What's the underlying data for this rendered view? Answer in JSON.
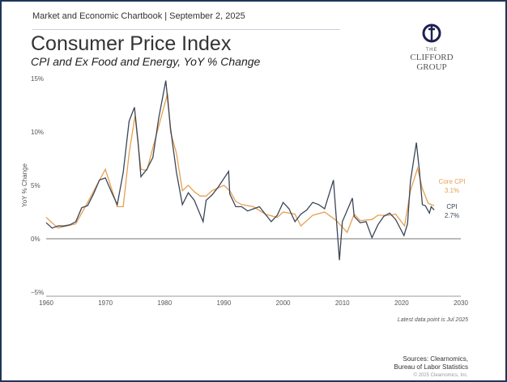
{
  "header": {
    "chartbook": "Market and Economic Chartbook | September 2, 2025"
  },
  "title": "Consumer Price Index",
  "subtitle": "CPI and Ex Food and Energy, YoY % Change",
  "logo": {
    "the": "THE",
    "name": "CLIFFORD GROUP"
  },
  "note": "Latest data point is Jul 2025",
  "sources": [
    "Sources: Clearnomics,",
    "Bureau of Labor Statistics"
  ],
  "copyright": "© 2025 Clearnomics, Inc.",
  "colors": {
    "cpi": "#3b4658",
    "core": "#e6a050",
    "frame": "#1f3557"
  },
  "chart_data": {
    "type": "line",
    "ylabel": "YoY % Change",
    "xlim": [
      1960,
      2030
    ],
    "ylim": [
      -5,
      15
    ],
    "xticks": [
      1960,
      1970,
      1980,
      1990,
      2000,
      2010,
      2020,
      2030
    ],
    "yticks": [
      {
        "v": 15,
        "label": "15%"
      },
      {
        "v": 10,
        "label": "10%"
      },
      {
        "v": 5,
        "label": "5%"
      },
      {
        "v": 0,
        "label": "0%"
      },
      {
        "v": -5,
        "label": "−5%"
      }
    ],
    "series": [
      {
        "name": "CPI",
        "end_label": "CPI",
        "end_value": "2.7%",
        "color": "#3b4658",
        "points": [
          [
            1960,
            1.5
          ],
          [
            1961,
            1.0
          ],
          [
            1962,
            1.2
          ],
          [
            1963,
            1.2
          ],
          [
            1964,
            1.3
          ],
          [
            1965,
            1.6
          ],
          [
            1966,
            2.9
          ],
          [
            1967,
            3.1
          ],
          [
            1968,
            4.2
          ],
          [
            1969,
            5.5
          ],
          [
            1970,
            5.7
          ],
          [
            1971,
            4.4
          ],
          [
            1972,
            3.2
          ],
          [
            1973,
            6.2
          ],
          [
            1974,
            11.0
          ],
          [
            1974.9,
            12.3
          ],
          [
            1975.5,
            9.1
          ],
          [
            1976,
            5.8
          ],
          [
            1977,
            6.5
          ],
          [
            1978,
            7.6
          ],
          [
            1979,
            11.3
          ],
          [
            1980.2,
            14.8
          ],
          [
            1981,
            10.3
          ],
          [
            1982,
            6.2
          ],
          [
            1983,
            3.2
          ],
          [
            1984,
            4.3
          ],
          [
            1985,
            3.6
          ],
          [
            1986.5,
            1.6
          ],
          [
            1987,
            3.6
          ],
          [
            1988,
            4.1
          ],
          [
            1989,
            4.8
          ],
          [
            1990.8,
            6.3
          ],
          [
            1991,
            4.2
          ],
          [
            1992,
            3.0
          ],
          [
            1993,
            3.0
          ],
          [
            1994,
            2.6
          ],
          [
            1995,
            2.8
          ],
          [
            1996,
            3.0
          ],
          [
            1997,
            2.3
          ],
          [
            1998,
            1.6
          ],
          [
            1999,
            2.2
          ],
          [
            2000,
            3.4
          ],
          [
            2001,
            2.8
          ],
          [
            2002,
            1.6
          ],
          [
            2003,
            2.3
          ],
          [
            2004,
            2.7
          ],
          [
            2005,
            3.4
          ],
          [
            2006,
            3.2
          ],
          [
            2007,
            2.8
          ],
          [
            2008.5,
            5.5
          ],
          [
            2009.5,
            -2.0
          ],
          [
            2010,
            1.6
          ],
          [
            2011.7,
            3.8
          ],
          [
            2012,
            2.1
          ],
          [
            2013,
            1.5
          ],
          [
            2014,
            1.6
          ],
          [
            2015,
            0.1
          ],
          [
            2016,
            1.3
          ],
          [
            2017,
            2.1
          ],
          [
            2018,
            2.4
          ],
          [
            2019,
            1.8
          ],
          [
            2020.4,
            0.3
          ],
          [
            2021,
            1.4
          ],
          [
            2021.5,
            5.4
          ],
          [
            2022.5,
            9.0
          ],
          [
            2023,
            6.4
          ],
          [
            2023.5,
            3.2
          ],
          [
            2024,
            3.1
          ],
          [
            2024.7,
            2.4
          ],
          [
            2025,
            3.0
          ],
          [
            2025.5,
            2.7
          ]
        ]
      },
      {
        "name": "Core CPI",
        "end_label": "Core CPI",
        "end_value": "3.1%",
        "color": "#e6a050",
        "points": [
          [
            1960,
            2.0
          ],
          [
            1962,
            1.0
          ],
          [
            1965,
            1.4
          ],
          [
            1967,
            3.4
          ],
          [
            1970,
            6.5
          ],
          [
            1972,
            3.0
          ],
          [
            1973,
            3.0
          ],
          [
            1974,
            8.0
          ],
          [
            1975,
            11.5
          ],
          [
            1976,
            6.5
          ],
          [
            1977,
            6.4
          ],
          [
            1978,
            8.5
          ],
          [
            1980.5,
            13.6
          ],
          [
            1981,
            10.0
          ],
          [
            1982,
            8.0
          ],
          [
            1983,
            4.5
          ],
          [
            1984,
            5.0
          ],
          [
            1985,
            4.4
          ],
          [
            1986,
            4.0
          ],
          [
            1987,
            4.0
          ],
          [
            1988,
            4.5
          ],
          [
            1990,
            5.0
          ],
          [
            1991,
            4.5
          ],
          [
            1992,
            3.5
          ],
          [
            1993,
            3.2
          ],
          [
            1995,
            3.0
          ],
          [
            1997,
            2.3
          ],
          [
            1999,
            2.0
          ],
          [
            2000,
            2.5
          ],
          [
            2002,
            2.3
          ],
          [
            2003,
            1.2
          ],
          [
            2005,
            2.2
          ],
          [
            2007,
            2.5
          ],
          [
            2009,
            1.7
          ],
          [
            2010.8,
            0.6
          ],
          [
            2012,
            2.3
          ],
          [
            2013,
            1.7
          ],
          [
            2015,
            1.8
          ],
          [
            2016,
            2.2
          ],
          [
            2018,
            2.2
          ],
          [
            2019,
            2.3
          ],
          [
            2020.5,
            1.2
          ],
          [
            2021.5,
            4.5
          ],
          [
            2022.7,
            6.6
          ],
          [
            2023.5,
            4.7
          ],
          [
            2024.5,
            3.3
          ],
          [
            2025.5,
            3.1
          ]
        ]
      }
    ]
  }
}
